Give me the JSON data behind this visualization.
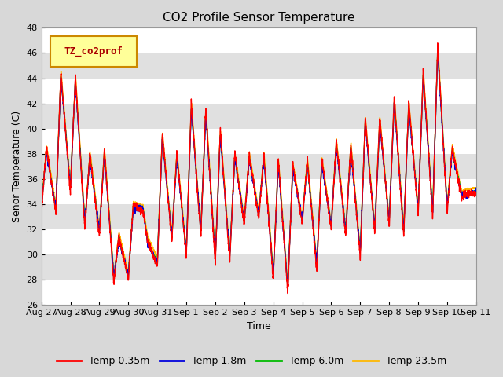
{
  "title": "CO2 Profile Sensor Temperature",
  "ylabel": "Senor Temperature (C)",
  "xlabel": "Time",
  "ylim": [
    26,
    48
  ],
  "yticks": [
    26,
    28,
    30,
    32,
    34,
    36,
    38,
    40,
    42,
    44,
    46,
    48
  ],
  "legend_label": "TZ_co2prof",
  "series_labels": [
    "Temp 0.35m",
    "Temp 1.8m",
    "Temp 6.0m",
    "Temp 23.5m"
  ],
  "series_colors": [
    "#FF0000",
    "#0000DD",
    "#00BB00",
    "#FFB800"
  ],
  "line_width": 1.0,
  "bg_color": "#D8D8D8",
  "band_colors": [
    "#FFFFFF",
    "#E0E0E0"
  ],
  "xtick_labels": [
    "Aug 27",
    "Aug 28",
    "Aug 29",
    "Aug 30",
    "Aug 31",
    "Sep 1",
    "Sep 2",
    "Sep 3",
    "Sep 4",
    "Sep 5",
    "Sep 6",
    "Sep 7",
    "Sep 8",
    "Sep 9",
    "Sep 10",
    "Sep 11"
  ],
  "n_days": 15,
  "peaks": [
    38.5,
    44.5,
    44.1,
    38.0,
    38.3,
    31.5,
    34.0,
    31.0,
    39.6,
    38.0,
    42.0,
    41.5,
    39.8,
    38.0,
    37.9,
    37.9,
    37.5,
    37.2,
    37.5,
    37.6,
    39.0,
    38.7,
    40.8,
    40.8,
    42.4,
    42.1,
    44.5,
    46.5,
    38.5,
    34.9
  ],
  "troughs": [
    33.3,
    35.0,
    32.1,
    31.5,
    27.8,
    28.0,
    33.5,
    29.1,
    31.1,
    29.8,
    31.5,
    29.3,
    29.5,
    32.4,
    32.9,
    28.1,
    27.0,
    32.5,
    28.8,
    32.0,
    31.5,
    29.8,
    31.7,
    32.3,
    31.5,
    33.2,
    33.0,
    33.4,
    34.5,
    34.8
  ]
}
